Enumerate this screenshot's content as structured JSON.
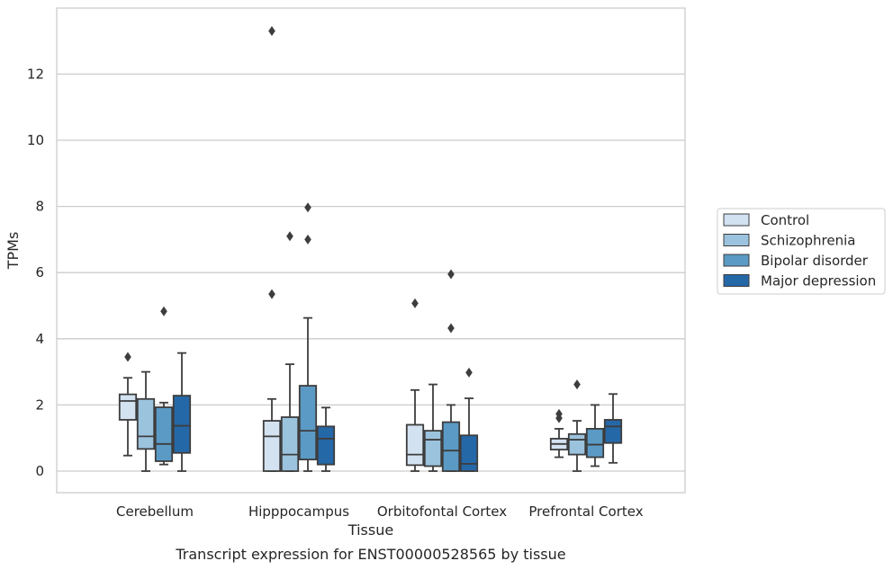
{
  "chart_data": {
    "type": "box",
    "title": "",
    "caption": "Transcript expression for ENST00000528565 by tissue",
    "xlabel": "Tissue",
    "ylabel": "TPMs",
    "ylim": [
      -0.65,
      14.0
    ],
    "yticks": [
      0,
      2,
      4,
      6,
      8,
      10,
      12
    ],
    "grid": "horizontal",
    "legend_position": "right",
    "categories": [
      "Cerebellum",
      "Hipppocampus",
      "Orbitofontal Cortex",
      "Prefrontal Cortex"
    ],
    "series": [
      {
        "name": "Control",
        "color": "#d3e2f1",
        "boxes": [
          {
            "whislo": 0.47,
            "q1": 1.55,
            "med": 2.12,
            "q3": 2.32,
            "whishi": 2.82,
            "fliers": [
              3.45
            ]
          },
          {
            "whislo": 0.0,
            "q1": 0.0,
            "med": 1.05,
            "q3": 1.52,
            "whishi": 2.18,
            "fliers": [
              5.35,
              13.3
            ]
          },
          {
            "whislo": 0.0,
            "q1": 0.18,
            "med": 0.5,
            "q3": 1.4,
            "whishi": 2.45,
            "fliers": [
              5.07
            ]
          },
          {
            "whislo": 0.42,
            "q1": 0.65,
            "med": 0.82,
            "q3": 0.98,
            "whishi": 1.28,
            "fliers": [
              1.6,
              1.73
            ]
          }
        ]
      },
      {
        "name": "Schizophrenia",
        "color": "#9cc3de",
        "boxes": [
          {
            "whislo": 0.0,
            "q1": 0.67,
            "med": 1.05,
            "q3": 2.18,
            "whishi": 3.0,
            "fliers": []
          },
          {
            "whislo": 0.0,
            "q1": 0.0,
            "med": 0.5,
            "q3": 1.63,
            "whishi": 3.23,
            "fliers": [
              7.1
            ]
          },
          {
            "whislo": 0.0,
            "q1": 0.15,
            "med": 0.95,
            "q3": 1.22,
            "whishi": 2.62,
            "fliers": []
          },
          {
            "whislo": 0.0,
            "q1": 0.5,
            "med": 0.95,
            "q3": 1.12,
            "whishi": 1.52,
            "fliers": [
              2.62
            ]
          }
        ]
      },
      {
        "name": "Bipolar disorder",
        "color": "#5b9ac5",
        "boxes": [
          {
            "whislo": 0.2,
            "q1": 0.3,
            "med": 0.82,
            "q3": 1.93,
            "whishi": 2.07,
            "fliers": [
              4.83
            ]
          },
          {
            "whislo": 0.0,
            "q1": 0.35,
            "med": 1.22,
            "q3": 2.58,
            "whishi": 4.63,
            "fliers": [
              7.0,
              7.97
            ]
          },
          {
            "whislo": 0.0,
            "q1": 0.0,
            "med": 0.62,
            "q3": 1.48,
            "whishi": 2.0,
            "fliers": [
              4.32,
              5.95
            ]
          },
          {
            "whislo": 0.15,
            "q1": 0.42,
            "med": 0.8,
            "q3": 1.28,
            "whishi": 2.0,
            "fliers": []
          }
        ]
      },
      {
        "name": "Major depression",
        "color": "#2568a8",
        "boxes": [
          {
            "whislo": 0.0,
            "q1": 0.55,
            "med": 1.37,
            "q3": 2.28,
            "whishi": 3.57,
            "fliers": []
          },
          {
            "whislo": 0.0,
            "q1": 0.2,
            "med": 0.98,
            "q3": 1.35,
            "whishi": 1.92,
            "fliers": []
          },
          {
            "whislo": 0.0,
            "q1": 0.0,
            "med": 0.22,
            "q3": 1.08,
            "whishi": 2.2,
            "fliers": [
              2.98
            ]
          },
          {
            "whislo": 0.25,
            "q1": 0.85,
            "med": 1.35,
            "q3": 1.55,
            "whishi": 2.33,
            "fliers": []
          }
        ]
      }
    ]
  }
}
